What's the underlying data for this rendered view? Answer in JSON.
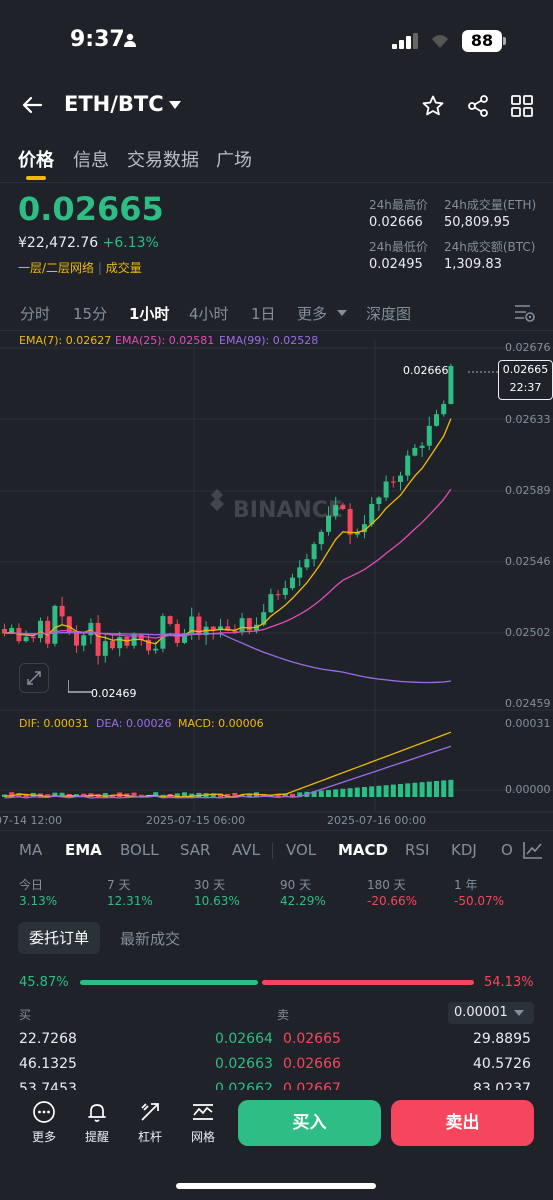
{
  "status": {
    "time": "9:37",
    "battery": "88"
  },
  "header": {
    "pair": "ETH/BTC"
  },
  "tabs": [
    "价格",
    "信息",
    "交易数据",
    "广场"
  ],
  "price": {
    "last": "0.02665",
    "cny": "¥22,472.76",
    "change": "+6.13%",
    "layer": "一层/二层网络",
    "volume_link": "成交量"
  },
  "stats": {
    "high_label": "24h最高价",
    "high": "0.02666",
    "vol_eth_label": "24h成交量(ETH)",
    "vol_eth": "50,809.95",
    "low_label": "24h最低价",
    "low": "0.02495",
    "vol_btc_label": "24h成交额(BTC)",
    "vol_btc": "1,309.83"
  },
  "intervals": [
    "分时",
    "15分",
    "1小时",
    "4小时",
    "1日",
    "更多",
    "深度图"
  ],
  "ema": {
    "ema7": "EMA(7): 0.02627",
    "ema25": "EMA(25): 0.02581",
    "ema99": "EMA(99): 0.02528"
  },
  "price_axis": [
    "0.02676",
    "0.02633",
    "0.02589",
    "0.02546",
    "0.02502",
    "0.02459"
  ],
  "price_tag": {
    "price": "0.02665",
    "countdown": "22:37"
  },
  "high_marker": "0.02666",
  "low_marker": "0.02469",
  "watermark": "BINANCE",
  "macd": {
    "dif": "DIF: 0.00031",
    "dea": "DEA: 0.00026",
    "macd": "MACD: 0.00006"
  },
  "macd_axis": [
    "0.00031",
    "0.00000"
  ],
  "time_axis": [
    "07-14 12:00",
    "2025-07-15 06:00",
    "2025-07-16 00:00"
  ],
  "indicators": [
    "MA",
    "EMA",
    "BOLL",
    "SAR",
    "AVL",
    "VOL",
    "MACD",
    "RSI",
    "KDJ",
    "O"
  ],
  "performance": [
    {
      "label": "今日",
      "value": "3.13%"
    },
    {
      "label": "7 天",
      "value": "12.31%"
    },
    {
      "label": "30 天",
      "value": "10.63%"
    },
    {
      "label": "90 天",
      "value": "42.29%"
    },
    {
      "label": "180 天",
      "value": "-20.66%"
    },
    {
      "label": "1 年",
      "value": "-50.07%"
    }
  ],
  "book_tabs": [
    "委托订单",
    "最新成交"
  ],
  "ratio": {
    "buy": "45.87%",
    "sell": "54.13%"
  },
  "orderbook": {
    "buy_label": "买",
    "sell_label": "卖",
    "precision": "0.00001",
    "rows": [
      {
        "bid_qty": "22.7268",
        "bid": "0.02664",
        "ask": "0.02665",
        "ask_qty": "29.8895"
      },
      {
        "bid_qty": "46.1325",
        "bid": "0.02663",
        "ask": "0.02666",
        "ask_qty": "40.5726"
      },
      {
        "bid_qty": "53.7453",
        "bid": "0.02662",
        "ask": "0.02667",
        "ask_qty": "83.0237"
      }
    ]
  },
  "bottom": {
    "more": "更多",
    "alert": "提醒",
    "leverage": "杠杆",
    "grid": "网格",
    "buy": "买入",
    "sell": "卖出"
  },
  "colors": {
    "up": "#2ebd85",
    "down": "#f6465d",
    "accent": "#f0b90b",
    "ema7": "#f0b90b",
    "ema25": "#e24cb8",
    "ema99": "#9c6ce8"
  }
}
